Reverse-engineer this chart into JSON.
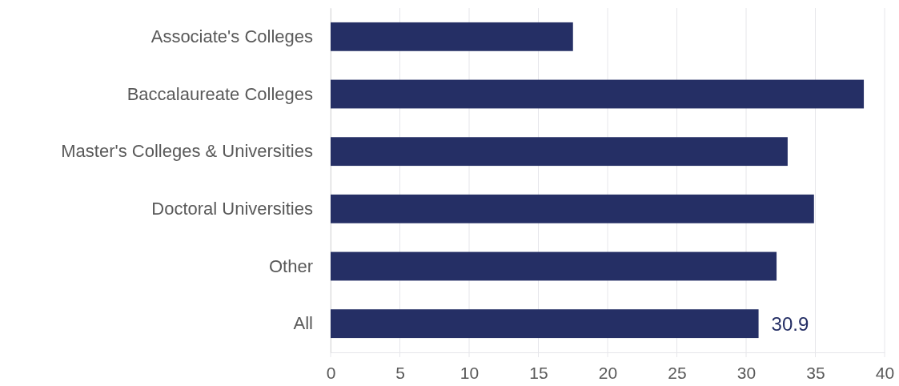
{
  "chart_data": {
    "type": "bar",
    "orientation": "horizontal",
    "categories": [
      "Associate's Colleges",
      "Baccalaureate Colleges",
      "Master's Colleges & Universities",
      "Doctoral Universities",
      "Other",
      "All"
    ],
    "values": [
      17.5,
      38.5,
      33.0,
      34.9,
      32.2,
      30.9
    ],
    "value_labels": [
      null,
      null,
      null,
      null,
      null,
      "30.9"
    ],
    "color": "#252f65",
    "xlim": [
      0,
      40
    ],
    "xticks": [
      0,
      5,
      10,
      15,
      20,
      25,
      30,
      35,
      40
    ],
    "grid": "x"
  }
}
